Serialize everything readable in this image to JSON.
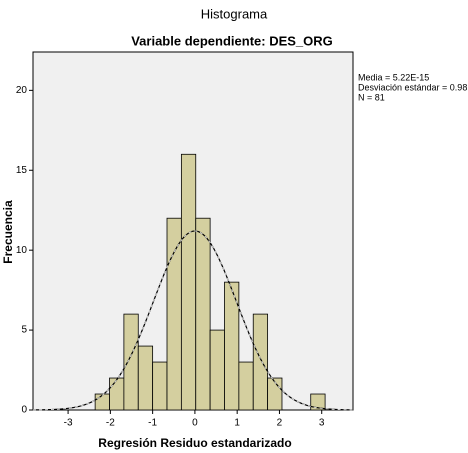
{
  "chart_data": {
    "type": "histogram",
    "title": "Histograma",
    "subtitle": "Variable dependiente: DES_ORG",
    "xlabel": "Regresión Residuo estandarizado",
    "ylabel": "Frecuencia",
    "bins": [
      -2.36,
      -2.02,
      -1.68,
      -1.34,
      -1.0,
      -0.66,
      -0.32,
      0.02,
      0.36,
      0.7,
      1.04,
      1.38,
      1.72,
      2.06,
      2.4,
      2.74,
      3.08
    ],
    "counts": [
      1,
      2,
      6,
      4,
      3,
      12,
      16,
      12,
      5,
      8,
      3,
      6,
      2,
      0,
      0,
      1
    ],
    "color": "#d4cf9f",
    "xlim": [
      -3.83,
      3.74
    ],
    "ylim": [
      0,
      22.4
    ],
    "xticks": [
      -3,
      -2,
      -1,
      0,
      1,
      2,
      3
    ],
    "yticks": [
      0,
      5,
      10,
      15,
      20
    ],
    "normal_curve": true,
    "stats": [
      {
        "value": 5.22e-15,
        "label": "Media = 5.22E-15"
      },
      {
        "value": 0.981,
        "label": "Desviación estándar = 0.981"
      },
      {
        "value": 81,
        "label": "N = 81"
      }
    ]
  }
}
